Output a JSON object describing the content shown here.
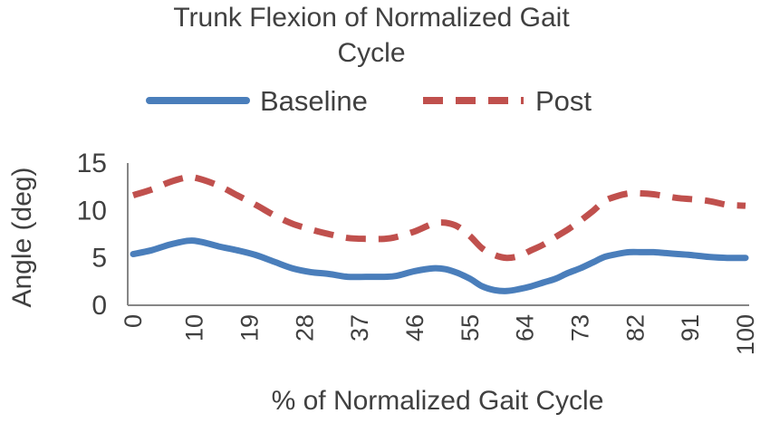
{
  "chart_data": {
    "type": "line",
    "title_lines": [
      "Trunk Flexion of Normalized Gait",
      "Cycle"
    ],
    "xlabel": "% of Normalized Gait Cycle",
    "ylabel": "Angle (deg)",
    "ylim": [
      0,
      15
    ],
    "yticks": [
      "0",
      "5",
      "10",
      "15"
    ],
    "xlim": [
      0,
      100
    ],
    "xticks": [
      "0",
      "10",
      "19",
      "28",
      "37",
      "46",
      "55",
      "64",
      "73",
      "82",
      "91",
      "100"
    ],
    "grid": false,
    "legend_position": "top",
    "series": [
      {
        "name": "Baseline",
        "color": "#4a7ebb",
        "style": "solid",
        "x": [
          0,
          3,
          6,
          9,
          11,
          14,
          17,
          20,
          23,
          26,
          29,
          32,
          35,
          38,
          41,
          43,
          46,
          49,
          51,
          53,
          55,
          57,
          59,
          61,
          63,
          65,
          67,
          69,
          71,
          73,
          75,
          77,
          79,
          81,
          83,
          85,
          87,
          89,
          91,
          94,
          97,
          100
        ],
        "y": [
          5.4,
          5.8,
          6.4,
          6.8,
          6.7,
          6.2,
          5.8,
          5.3,
          4.6,
          3.9,
          3.5,
          3.3,
          3.0,
          3.0,
          3.0,
          3.1,
          3.6,
          3.9,
          3.8,
          3.4,
          2.8,
          2.0,
          1.6,
          1.5,
          1.7,
          2.0,
          2.4,
          2.8,
          3.4,
          3.9,
          4.5,
          5.1,
          5.4,
          5.6,
          5.6,
          5.6,
          5.5,
          5.4,
          5.3,
          5.1,
          5.0,
          5.0
        ]
      },
      {
        "name": "Post",
        "color": "#c0504d",
        "style": "dashed",
        "x": [
          0,
          3,
          6,
          9,
          11,
          14,
          17,
          20,
          23,
          26,
          29,
          32,
          35,
          38,
          41,
          43,
          46,
          49,
          51,
          53,
          55,
          57,
          59,
          61,
          63,
          65,
          67,
          69,
          71,
          73,
          75,
          77,
          79,
          81,
          83,
          85,
          87,
          89,
          91,
          94,
          97,
          100
        ],
        "y": [
          11.6,
          12.2,
          13.0,
          13.5,
          13.3,
          12.6,
          11.6,
          10.6,
          9.5,
          8.6,
          8.0,
          7.5,
          7.1,
          7.0,
          7.0,
          7.2,
          7.8,
          8.6,
          8.7,
          8.3,
          7.3,
          6.0,
          5.3,
          5.0,
          5.2,
          5.8,
          6.4,
          7.2,
          8.0,
          8.9,
          9.9,
          11.0,
          11.5,
          11.8,
          11.8,
          11.7,
          11.5,
          11.3,
          11.2,
          11.0,
          10.6,
          10.5
        ]
      }
    ]
  }
}
